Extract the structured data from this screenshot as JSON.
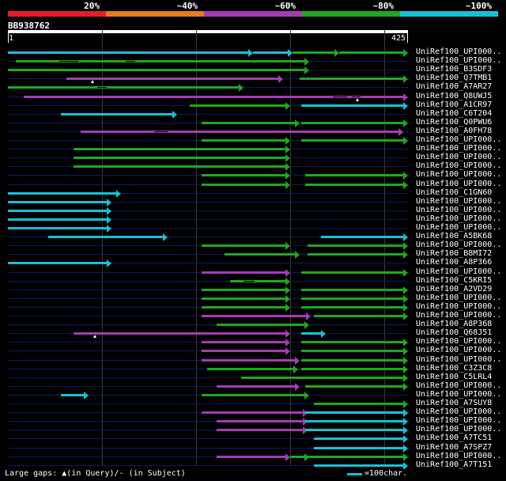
{
  "colors": {
    "red": "#e81c2a",
    "orange": "#e87b1c",
    "magenta": "#a33cb3",
    "green": "#1fa71f",
    "cyan": "#18c0d6",
    "row_bg": "#0d1a6b",
    "grid": "#3a3a3a"
  },
  "legend": {
    "segments": [
      {
        "color": "red",
        "label": "20%"
      },
      {
        "color": "orange",
        "label": "~40%"
      },
      {
        "color": "magenta",
        "label": "~60%"
      },
      {
        "color": "green",
        "label": "~80%"
      },
      {
        "color": "cyan",
        "label": "~100%"
      }
    ]
  },
  "query": {
    "id": "BB938762",
    "length": 425,
    "start_label": "1",
    "end_label": "425"
  },
  "grid_positions": [
    100,
    200,
    300,
    400
  ],
  "hits": [
    {
      "label": "UniRef100_UPI000..",
      "segs": [
        [
          0,
          260,
          "cyan"
        ],
        [
          260,
          302,
          "cyan"
        ],
        [
          302,
          352,
          "green"
        ],
        [
          352,
          425,
          "green"
        ]
      ]
    },
    {
      "label": "UniRef100_UPI000..",
      "segs": [
        [
          8,
          320,
          "green"
        ]
      ],
      "sgaps": [
        [
          55,
          75
        ],
        [
          125,
          135
        ]
      ]
    },
    {
      "label": "UniRef100_B3SDF3",
      "segs": [
        [
          0,
          320,
          "green"
        ]
      ]
    },
    {
      "label": "UniRef100_Q7TMB1",
      "segs": [
        [
          62,
          292,
          "magenta"
        ],
        [
          310,
          425,
          "green"
        ]
      ],
      "qgaps": [
        90
      ]
    },
    {
      "label": "UniRef100_A7AR27",
      "segs": [
        [
          0,
          250,
          "green"
        ]
      ],
      "sgaps": [
        [
          95,
          105
        ]
      ]
    },
    {
      "label": "UniRef100_Q8UWJ5",
      "segs": [
        [
          17,
          425,
          "magenta"
        ]
      ],
      "qgaps": [
        371
      ],
      "sgaps": [
        [
          345,
          360
        ],
        [
          365,
          375
        ]
      ]
    },
    {
      "label": "UniRef100_A1CR97",
      "segs": [
        [
          193,
          300,
          "green"
        ],
        [
          312,
          425,
          "cyan"
        ]
      ]
    },
    {
      "label": "UniRef100_C6T204",
      "segs": [
        [
          56,
          180,
          "cyan"
        ]
      ]
    },
    {
      "label": "UniRef100_Q0PWU6",
      "segs": [
        [
          206,
          310,
          "green"
        ],
        [
          312,
          425,
          "green"
        ]
      ]
    },
    {
      "label": "UniRef100_A0FH78",
      "segs": [
        [
          77,
          420,
          "magenta"
        ]
      ],
      "sgaps": [
        [
          155,
          170
        ]
      ]
    },
    {
      "label": "UniRef100_UPI000..",
      "segs": [
        [
          206,
          300,
          "green"
        ],
        [
          312,
          425,
          "green"
        ]
      ]
    },
    {
      "label": "UniRef100_UPI000..",
      "segs": [
        [
          70,
          300,
          "green"
        ]
      ]
    },
    {
      "label": "UniRef100_UPI000..",
      "segs": [
        [
          70,
          300,
          "green"
        ]
      ]
    },
    {
      "label": "UniRef100_UPI000..",
      "segs": [
        [
          70,
          300,
          "green"
        ]
      ]
    },
    {
      "label": "UniRef100_UPI000..",
      "segs": [
        [
          206,
          300,
          "green"
        ],
        [
          316,
          425,
          "green"
        ]
      ]
    },
    {
      "label": "UniRef100_UPI000..",
      "segs": [
        [
          206,
          300,
          "green"
        ],
        [
          316,
          425,
          "green"
        ]
      ]
    },
    {
      "label": "UniRef100_C1GN60",
      "segs": [
        [
          0,
          120,
          "cyan"
        ]
      ]
    },
    {
      "label": "UniRef100_UPI000..",
      "segs": [
        [
          0,
          110,
          "cyan"
        ]
      ]
    },
    {
      "label": "UniRef100_UPI000..",
      "segs": [
        [
          0,
          110,
          "cyan"
        ]
      ]
    },
    {
      "label": "UniRef100_UPI000..",
      "segs": [
        [
          0,
          110,
          "cyan"
        ]
      ]
    },
    {
      "label": "UniRef100_UPI000..",
      "segs": [
        [
          0,
          110,
          "cyan"
        ]
      ]
    },
    {
      "label": "UniRef100_A5BK68",
      "segs": [
        [
          43,
          170,
          "cyan"
        ],
        [
          333,
          425,
          "cyan"
        ]
      ]
    },
    {
      "label": "UniRef100_UPI000..",
      "segs": [
        [
          206,
          300,
          "green"
        ],
        [
          318,
          425,
          "green"
        ]
      ]
    },
    {
      "label": "UniRef100_B8MI72",
      "segs": [
        [
          230,
          310,
          "green"
        ],
        [
          318,
          425,
          "green"
        ]
      ]
    },
    {
      "label": "UniRef100_A8P366",
      "segs": [
        [
          0,
          110,
          "cyan"
        ]
      ]
    },
    {
      "label": "UniRef100_UPI000..",
      "segs": [
        [
          206,
          300,
          "magenta"
        ],
        [
          312,
          425,
          "green"
        ]
      ]
    },
    {
      "label": "UniRef100_C5KRI5",
      "segs": [
        [
          236,
          300,
          "green"
        ]
      ],
      "sgaps": [
        [
          250,
          262
        ]
      ]
    },
    {
      "label": "UniRef100_A2VD29",
      "segs": [
        [
          206,
          300,
          "green"
        ],
        [
          312,
          425,
          "green"
        ]
      ]
    },
    {
      "label": "UniRef100_UPI000..",
      "segs": [
        [
          206,
          300,
          "green"
        ],
        [
          312,
          425,
          "green"
        ]
      ]
    },
    {
      "label": "UniRef100_UPI000..",
      "segs": [
        [
          206,
          300,
          "green"
        ],
        [
          312,
          425,
          "green"
        ]
      ]
    },
    {
      "label": "UniRef100_UPI000..",
      "segs": [
        [
          206,
          322,
          "magenta"
        ],
        [
          325,
          425,
          "green"
        ]
      ]
    },
    {
      "label": "UniRef100_A8P368",
      "segs": [
        [
          222,
          320,
          "green"
        ]
      ]
    },
    {
      "label": "UniRef100_Q68J51",
      "segs": [
        [
          70,
          300,
          "magenta"
        ],
        [
          312,
          338,
          "cyan"
        ]
      ],
      "qgaps": [
        92
      ]
    },
    {
      "label": "UniRef100_UPI000..",
      "segs": [
        [
          206,
          300,
          "magenta"
        ],
        [
          312,
          425,
          "green"
        ]
      ]
    },
    {
      "label": "UniRef100_UPI000..",
      "segs": [
        [
          206,
          300,
          "magenta"
        ],
        [
          312,
          425,
          "green"
        ]
      ]
    },
    {
      "label": "UniRef100_UPI000..",
      "segs": [
        [
          206,
          310,
          "magenta"
        ],
        [
          312,
          425,
          "green"
        ]
      ]
    },
    {
      "label": "UniRef100_C3Z3C8",
      "segs": [
        [
          212,
          308,
          "green"
        ],
        [
          312,
          425,
          "green"
        ]
      ]
    },
    {
      "label": "UniRef100_C5LRL4",
      "segs": [
        [
          248,
          425,
          "green"
        ]
      ]
    },
    {
      "label": "UniRef100_UPI000..",
      "segs": [
        [
          222,
          310,
          "magenta"
        ],
        [
          316,
          425,
          "green"
        ]
      ]
    },
    {
      "label": "UniRef100_UPI000..",
      "segs": [
        [
          56,
          86,
          "cyan"
        ],
        [
          206,
          320,
          "green"
        ]
      ]
    },
    {
      "label": "UniRef100_A7SUY8",
      "segs": [
        [
          325,
          425,
          "green"
        ]
      ]
    },
    {
      "label": "UniRef100_UPI000..",
      "segs": [
        [
          206,
          318,
          "magenta"
        ],
        [
          316,
          425,
          "cyan"
        ]
      ]
    },
    {
      "label": "UniRef100_UPI000..",
      "segs": [
        [
          222,
          318,
          "magenta"
        ],
        [
          316,
          425,
          "cyan"
        ]
      ]
    },
    {
      "label": "UniRef100_UPI000..",
      "segs": [
        [
          222,
          318,
          "magenta"
        ],
        [
          316,
          425,
          "cyan"
        ]
      ]
    },
    {
      "label": "UniRef100_A7TC51",
      "segs": [
        [
          325,
          425,
          "cyan"
        ]
      ]
    },
    {
      "label": "UniRef100_A7SPZ7",
      "segs": [
        [
          325,
          425,
          "cyan"
        ]
      ]
    },
    {
      "label": "UniRef100_UPI000..",
      "segs": [
        [
          222,
          300,
          "magenta"
        ],
        [
          300,
          320,
          "green"
        ],
        [
          316,
          425,
          "green"
        ]
      ]
    },
    {
      "label": "UniRef100_A7T151",
      "segs": [
        [
          325,
          425,
          "cyan"
        ]
      ]
    }
  ],
  "footer": {
    "prefix": "Large gaps: ",
    "query_symbol": "▲",
    "query_text": "(in Query)/",
    "subject_symbol": "-",
    "subject_text": " (in Subject)"
  },
  "scale": {
    "label": "=100char."
  }
}
